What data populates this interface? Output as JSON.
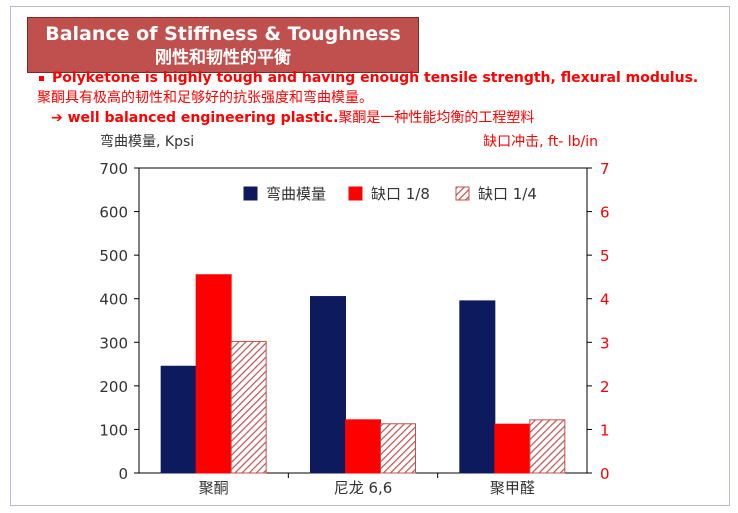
{
  "title": {
    "en": "Balance of Stiffness & Toughness",
    "zh": "刚性和韧性的平衡"
  },
  "bullets": {
    "line1_en": "Polyketone is highly tough and having enough tensile strength, flexural modulus.",
    "line2_zh": "聚酮具有极高的韧性和足够好的抗张强度和弯曲模量。",
    "line3_arrow": "➔ well balanced engineering plastic.",
    "line3_zh": "聚酮是一种性能均衡的工程塑料"
  },
  "colors": {
    "modulus": "#0d1b5e",
    "notch_1_8": "#ff0000",
    "notch_1_4_stripe": "#c0504d",
    "right_axis": "#ff0000",
    "title_bg": "#c0504d"
  },
  "chart_data": {
    "type": "bar",
    "categories": [
      "聚酮",
      "尼龙 6,6",
      "聚甲醛"
    ],
    "ylabel": "弯曲模量, Kpsi",
    "y2label": "缺口冲击, ft- lb/in",
    "ylim": [
      0,
      700
    ],
    "y2lim": [
      0,
      7
    ],
    "yticks": [
      0,
      100,
      200,
      300,
      400,
      500,
      600,
      700
    ],
    "y2ticks": [
      0,
      1,
      2,
      3,
      4,
      5,
      6,
      7
    ],
    "legend_position": "top-right",
    "grid": false,
    "series": [
      {
        "name": "弯曲模量",
        "axis": "left",
        "style": "solid-navy",
        "values": [
          245,
          405,
          395
        ]
      },
      {
        "name": "缺口 1/8",
        "axis": "right",
        "style": "solid-red",
        "values": [
          4.55,
          1.22,
          1.12
        ]
      },
      {
        "name": "缺口 1/4",
        "axis": "right",
        "style": "hatched",
        "values": [
          3.02,
          1.13,
          1.22
        ]
      }
    ]
  }
}
